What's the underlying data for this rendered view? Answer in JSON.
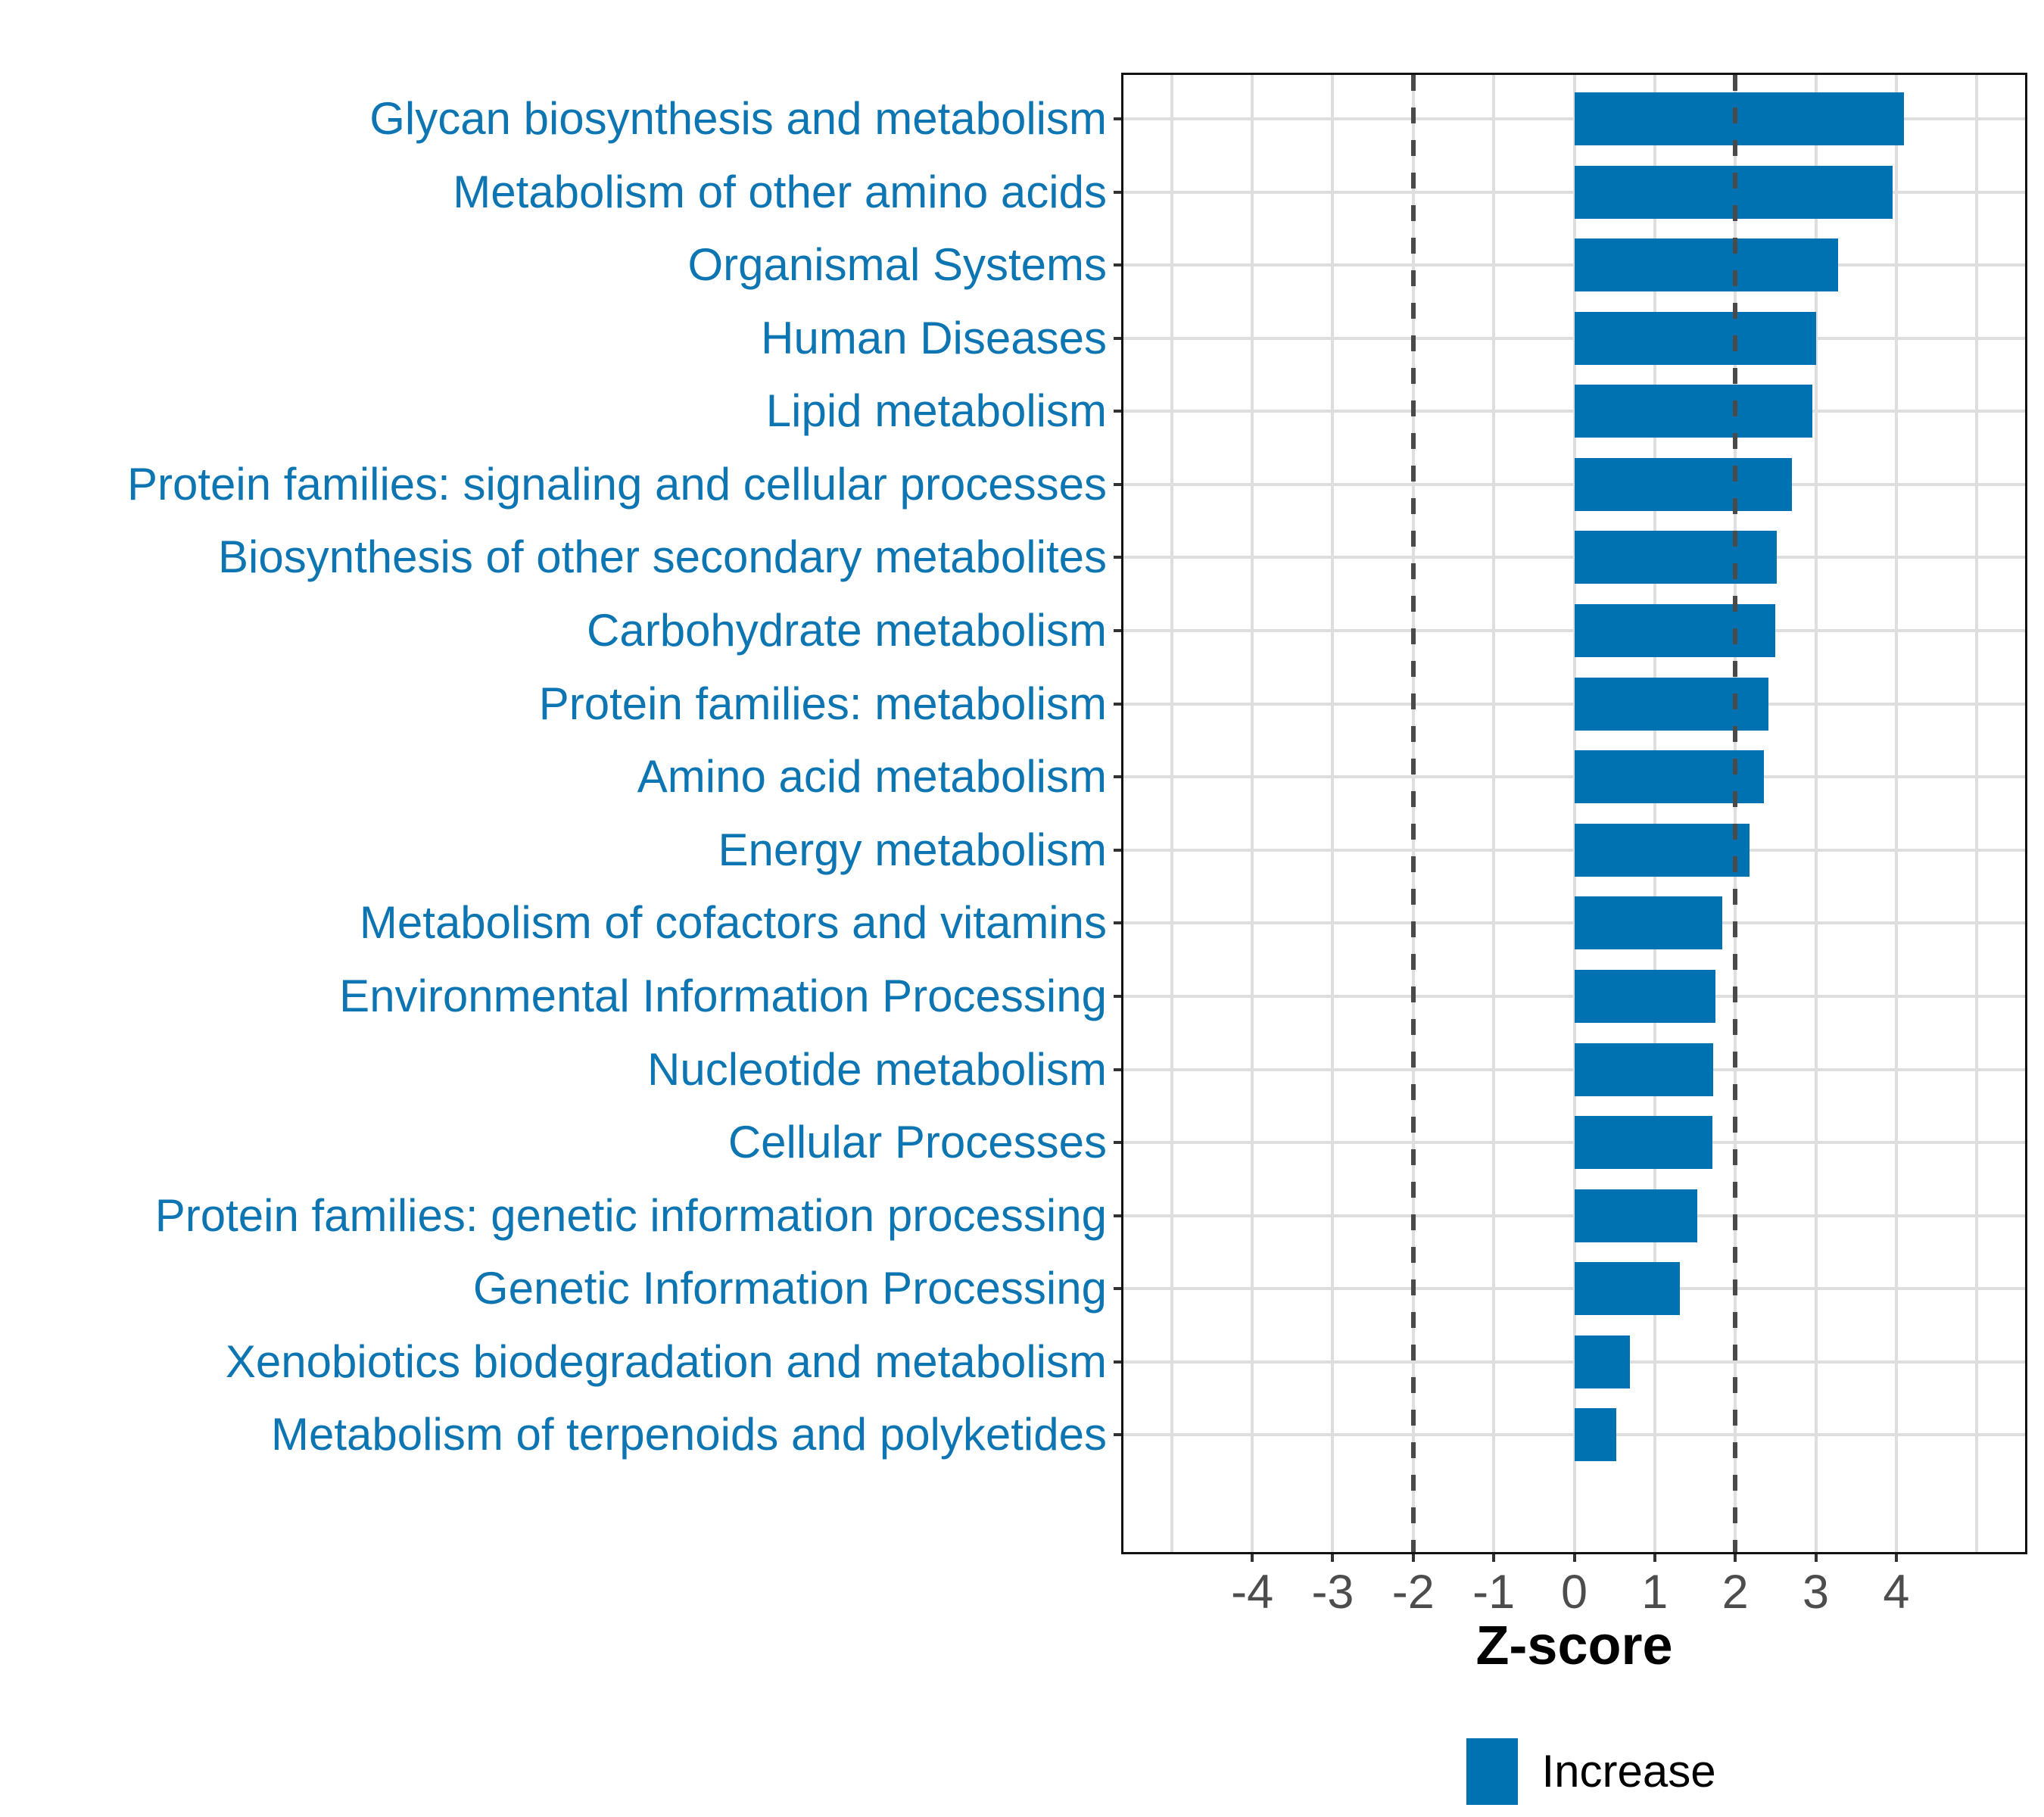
{
  "chart_data": {
    "type": "bar",
    "orientation": "horizontal",
    "title": "",
    "xlabel": "Z-score",
    "ylabel": "",
    "categories": [
      "Glycan biosynthesis and metabolism",
      "Metabolism of other amino acids",
      "Organismal Systems",
      "Human Diseases",
      "Lipid metabolism",
      "Protein families: signaling and cellular processes",
      "Biosynthesis of other secondary metabolites",
      "Carbohydrate metabolism",
      "Protein families: metabolism",
      "Amino acid metabolism",
      "Energy metabolism",
      "Metabolism of cofactors and vitamins",
      "Environmental Information Processing",
      "Nucleotide metabolism",
      "Cellular Processes",
      "Protein families: genetic information processing",
      "Genetic Information Processing",
      "Xenobiotics biodegradation and metabolism",
      "Metabolism of terpenoids and polyketides"
    ],
    "values": [
      4.1,
      3.95,
      3.28,
      3.0,
      2.96,
      2.7,
      2.52,
      2.5,
      2.41,
      2.36,
      2.18,
      1.84,
      1.75,
      1.73,
      1.72,
      1.53,
      1.31,
      0.69,
      0.52
    ],
    "series_name": "Increase",
    "xlim": [
      -5.6,
      5.6
    ],
    "x_ticks": [
      -4,
      -3,
      -2,
      -1,
      0,
      1,
      2,
      3,
      4
    ],
    "gridlines_at": [
      -5,
      -4,
      -3,
      -2,
      -1,
      0,
      1,
      2,
      3,
      4,
      5
    ],
    "reference_lines": [
      -2,
      2
    ],
    "grid": "major-only",
    "legend": {
      "position": "bottom",
      "entries": [
        {
          "label": "Increase",
          "color": "#0072B2"
        }
      ]
    },
    "bar_color": "#0072B2",
    "category_label_color": "#0d76b2",
    "gridline_color": "#dedede",
    "reference_line_color": "#4a4a4a",
    "tick_label_color": "#4d4d4d",
    "axis_title_color": "#000000"
  }
}
